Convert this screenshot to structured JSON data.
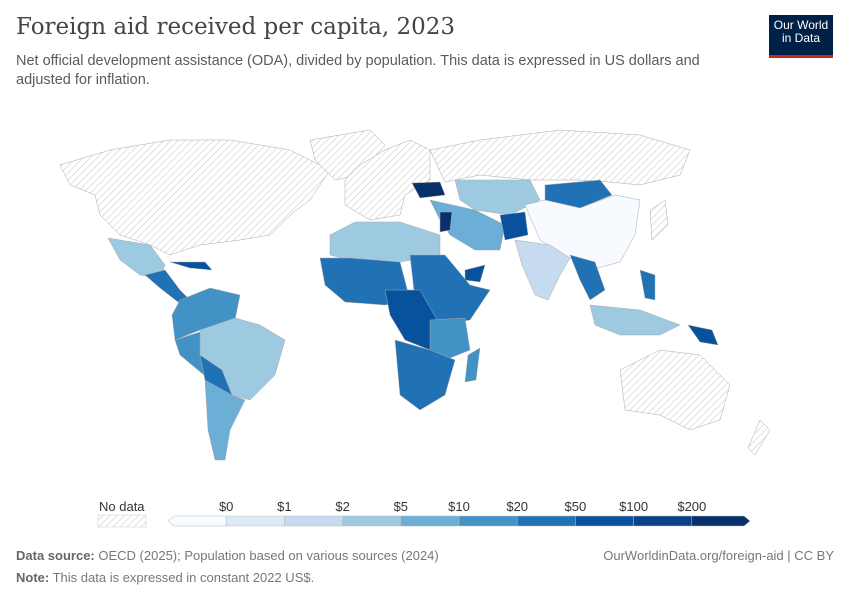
{
  "title": "Foreign aid received per capita, 2023",
  "subtitle": "Net official development assistance (ODA), divided by population. This data is expressed in US dollars and adjusted for inflation.",
  "logo": {
    "line1": "Our World",
    "line2": "in Data"
  },
  "legend": {
    "no_data_label": "No data",
    "bin_labels": [
      "$0",
      "$1",
      "$2",
      "$5",
      "$10",
      "$20",
      "$50",
      "$100",
      "$200"
    ],
    "colors": [
      "#f7fbff",
      "#deebf7",
      "#c6dbef",
      "#9ecae1",
      "#6baed6",
      "#4292c6",
      "#2171b5",
      "#08519c",
      "#0b4287",
      "#08306b"
    ]
  },
  "footer": {
    "source_label": "Data source:",
    "source": "OECD (2025); Population based on various sources (2024)",
    "url": "OurWorldinData.org/foreign-aid | CC BY",
    "note_label": "Note:",
    "note": "This data is expressed in constant 2022 US$."
  }
}
